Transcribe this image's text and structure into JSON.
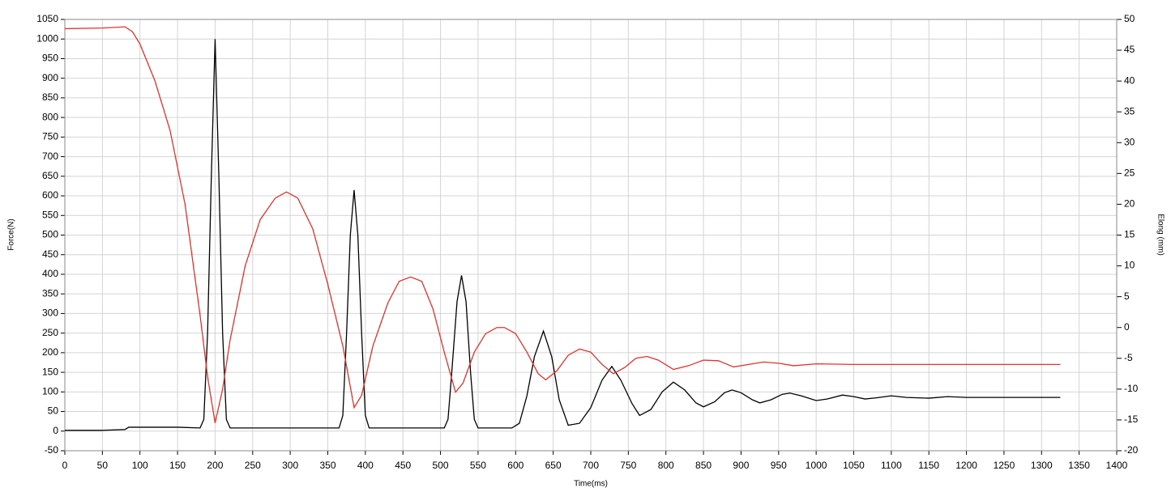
{
  "chart_data": {
    "type": "line",
    "xlabel": "Time(ms)",
    "ylabel": "Force(N)",
    "y2label": "Elong (mm)",
    "xlim": [
      0,
      1400
    ],
    "xticks": [
      0,
      50,
      100,
      150,
      200,
      250,
      300,
      350,
      400,
      450,
      500,
      550,
      600,
      650,
      700,
      750,
      800,
      850,
      900,
      950,
      1000,
      1050,
      1100,
      1150,
      1200,
      1250,
      1300,
      1350,
      1400
    ],
    "ylim": [
      -50,
      1050
    ],
    "yticks": [
      -50,
      0,
      50,
      100,
      150,
      200,
      250,
      300,
      350,
      400,
      450,
      500,
      550,
      600,
      650,
      700,
      750,
      800,
      850,
      900,
      950,
      1000,
      1050
    ],
    "y2lim": [
      -20,
      50
    ],
    "y2ticks": [
      -20,
      -15,
      -10,
      -5,
      0,
      5,
      10,
      15,
      20,
      25,
      30,
      35,
      40,
      45,
      50
    ],
    "grid": true,
    "series": [
      {
        "color": "#000000",
        "x": [
          0,
          50,
          80,
          85,
          150,
          180,
          185,
          190,
          195,
          200,
          205,
          210,
          215,
          220,
          365,
          370,
          375,
          380,
          385,
          390,
          395,
          400,
          405,
          505,
          510,
          515,
          522,
          528,
          534,
          540,
          545,
          550,
          595,
          605,
          615,
          625,
          637,
          648,
          658,
          670,
          685,
          700,
          715,
          728,
          740,
          755,
          765,
          780,
          795,
          810,
          825,
          840,
          850,
          865,
          878,
          888,
          900,
          915,
          925,
          940,
          955,
          965,
          980,
          1000,
          1015,
          1035,
          1050,
          1065,
          1080,
          1100,
          1120,
          1150,
          1175,
          1200,
          1250,
          1300,
          1325
        ],
        "values": [
          2,
          2,
          4,
          10,
          10,
          8,
          30,
          250,
          650,
          1000,
          650,
          250,
          30,
          8,
          8,
          40,
          250,
          500,
          615,
          500,
          250,
          40,
          8,
          8,
          30,
          150,
          330,
          397,
          330,
          150,
          30,
          8,
          8,
          20,
          90,
          190,
          255,
          190,
          80,
          15,
          20,
          60,
          130,
          165,
          130,
          70,
          40,
          55,
          100,
          125,
          105,
          72,
          62,
          75,
          98,
          105,
          98,
          80,
          72,
          80,
          94,
          97,
          90,
          78,
          82,
          92,
          88,
          82,
          85,
          90,
          86,
          84,
          88,
          86,
          86,
          86,
          86
        ]
      },
      {
        "color": "#e8312a",
        "axis": "y2",
        "x": [
          0,
          50,
          80,
          90,
          100,
          120,
          140,
          160,
          180,
          190,
          200,
          210,
          220,
          240,
          260,
          280,
          295,
          310,
          330,
          350,
          370,
          385,
          395,
          410,
          430,
          445,
          460,
          475,
          490,
          505,
          520,
          530,
          545,
          560,
          575,
          585,
          600,
          615,
          630,
          640,
          655,
          670,
          685,
          700,
          715,
          730,
          745,
          760,
          775,
          790,
          810,
          830,
          850,
          870,
          890,
          910,
          930,
          950,
          970,
          1000,
          1050,
          1100,
          1200,
          1325
        ],
        "values": [
          48.5,
          48.6,
          48.8,
          48,
          46,
          40,
          32,
          20,
          2,
          -8,
          -15.5,
          -10,
          -2,
          10,
          17.5,
          21,
          22,
          21,
          16,
          7,
          -3,
          -13,
          -11,
          -3,
          4,
          7.5,
          8.2,
          7.5,
          3,
          -4,
          -10.5,
          -9,
          -4,
          -1,
          0,
          0,
          -1,
          -4,
          -7.5,
          -8.5,
          -7,
          -4.5,
          -3.5,
          -4,
          -6,
          -7.5,
          -6.5,
          -5,
          -4.7,
          -5.3,
          -6.8,
          -6.2,
          -5.3,
          -5.4,
          -6.4,
          -6,
          -5.6,
          -5.8,
          -6.2,
          -5.9,
          -6,
          -6,
          -6,
          -6
        ]
      }
    ]
  }
}
